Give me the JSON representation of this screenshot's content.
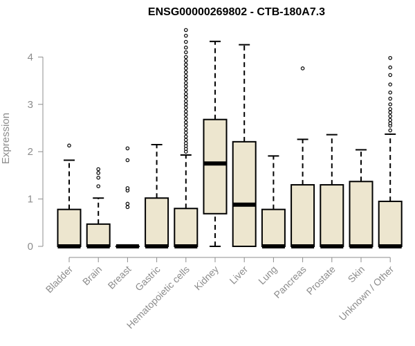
{
  "chart_data": {
    "type": "boxplot",
    "title": "ENSG00000269802 - CTB-180A7.3",
    "ylabel": "Expression",
    "ylim": [
      0,
      4.6
    ],
    "yticks": [
      0,
      1,
      2,
      3,
      4
    ],
    "box_fill": "#ede6cf",
    "categories": [
      "Bladder",
      "Brain",
      "Breast",
      "Gastric",
      "Hematopoietic cells",
      "Kidney",
      "Liver",
      "Lung",
      "Pancreas",
      "Prostate",
      "Skin",
      "Unknown / Other"
    ],
    "boxes": [
      {
        "min": 0,
        "q1": 0,
        "median": 0,
        "q3": 0.78,
        "max": 1.82,
        "outliers": [
          2.13
        ]
      },
      {
        "min": 0,
        "q1": 0,
        "median": 0,
        "q3": 0.47,
        "max": 1.02,
        "outliers": [
          1.27,
          1.45,
          1.55,
          1.63
        ]
      },
      {
        "min": 0,
        "q1": 0,
        "median": 0,
        "q3": 0,
        "max": 0,
        "outliers": [
          0.83,
          0.9,
          1.18,
          1.23,
          1.82,
          2.07
        ]
      },
      {
        "min": 0,
        "q1": 0,
        "median": 0,
        "q3": 1.02,
        "max": 2.15,
        "outliers": []
      },
      {
        "min": 0,
        "q1": 0,
        "median": 0,
        "q3": 0.8,
        "max": 1.93,
        "outliers": [
          2.0,
          2.06,
          2.12,
          2.18,
          2.25,
          2.32,
          2.4,
          2.47,
          2.55,
          2.62,
          2.7,
          2.78,
          2.85,
          2.93,
          3.0,
          3.07,
          3.15,
          3.22,
          3.3,
          3.38,
          3.45,
          3.53,
          3.6,
          3.68,
          3.76,
          3.84,
          3.92,
          4.0,
          4.1,
          4.2,
          4.32,
          4.45,
          4.57
        ]
      },
      {
        "min": 0,
        "q1": 0.69,
        "median": 1.75,
        "q3": 2.68,
        "max": 4.33,
        "outliers": []
      },
      {
        "min": 0,
        "q1": 0,
        "median": 0.88,
        "q3": 2.21,
        "max": 4.26,
        "outliers": []
      },
      {
        "min": 0,
        "q1": 0,
        "median": 0,
        "q3": 0.78,
        "max": 1.91,
        "outliers": []
      },
      {
        "min": 0,
        "q1": 0,
        "median": 0,
        "q3": 1.3,
        "max": 2.26,
        "outliers": [
          3.76
        ]
      },
      {
        "min": 0,
        "q1": 0,
        "median": 0,
        "q3": 1.3,
        "max": 2.36,
        "outliers": []
      },
      {
        "min": 0,
        "q1": 0,
        "median": 0,
        "q3": 1.37,
        "max": 2.04,
        "outliers": []
      },
      {
        "min": 0,
        "q1": 0,
        "median": 0,
        "q3": 0.95,
        "max": 2.37,
        "outliers": [
          2.45,
          2.55,
          2.6,
          2.67,
          2.75,
          2.83,
          2.9,
          3.0,
          3.12,
          3.25,
          3.42,
          3.62,
          3.78,
          3.98
        ]
      }
    ]
  }
}
